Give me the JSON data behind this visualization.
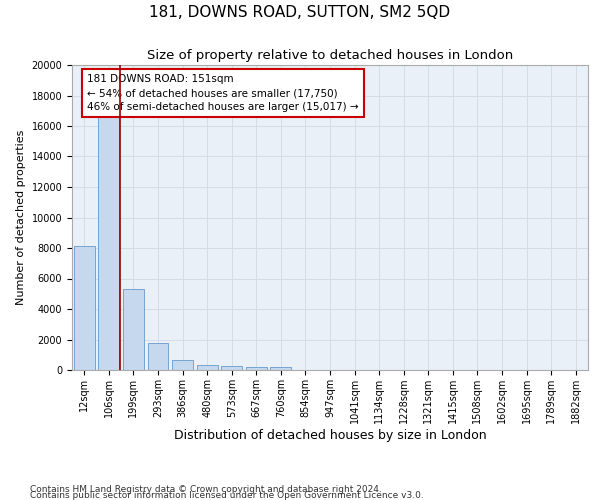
{
  "title": "181, DOWNS ROAD, SUTTON, SM2 5QD",
  "subtitle": "Size of property relative to detached houses in London",
  "xlabel": "Distribution of detached houses by size in London",
  "ylabel": "Number of detached properties",
  "categories": [
    "12sqm",
    "106sqm",
    "199sqm",
    "293sqm",
    "386sqm",
    "480sqm",
    "573sqm",
    "667sqm",
    "760sqm",
    "854sqm",
    "947sqm",
    "1041sqm",
    "1134sqm",
    "1228sqm",
    "1321sqm",
    "1415sqm",
    "1508sqm",
    "1602sqm",
    "1695sqm",
    "1789sqm",
    "1882sqm"
  ],
  "values": [
    8100,
    16600,
    5300,
    1750,
    650,
    350,
    280,
    200,
    175,
    0,
    0,
    0,
    0,
    0,
    0,
    0,
    0,
    0,
    0,
    0,
    0
  ],
  "bar_color": "#c5d8ee",
  "bar_edge_color": "#6699cc",
  "grid_color": "#d4dce8",
  "background_color": "#eaf0f8",
  "vline_x": 1.45,
  "vline_color": "#990000",
  "annotation_title": "181 DOWNS ROAD: 151sqm",
  "annotation_line1": "← 54% of detached houses are smaller (17,750)",
  "annotation_line2": "46% of semi-detached houses are larger (15,017) →",
  "annotation_box_color": "#ffffff",
  "annotation_box_edge": "#cc0000",
  "ylim": [
    0,
    20000
  ],
  "yticks": [
    0,
    2000,
    4000,
    6000,
    8000,
    10000,
    12000,
    14000,
    16000,
    18000,
    20000
  ],
  "footnote1": "Contains HM Land Registry data © Crown copyright and database right 2024.",
  "footnote2": "Contains public sector information licensed under the Open Government Licence v3.0.",
  "title_fontsize": 11,
  "subtitle_fontsize": 9.5,
  "xlabel_fontsize": 9,
  "ylabel_fontsize": 8,
  "tick_fontsize": 7,
  "annotation_fontsize": 7.5,
  "footnote_fontsize": 6.5
}
